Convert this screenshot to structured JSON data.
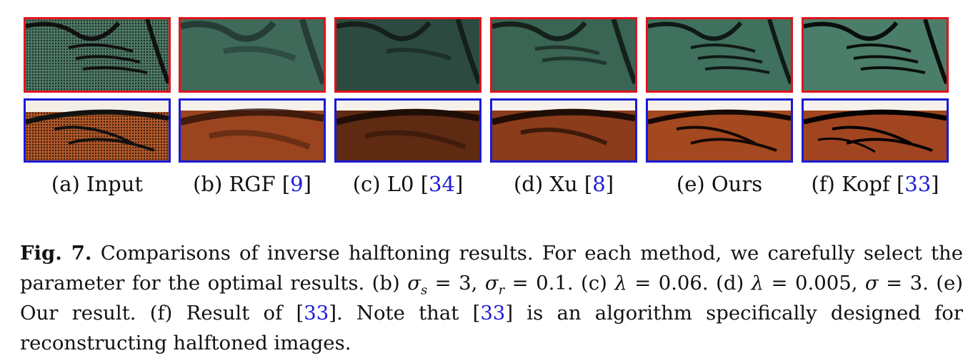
{
  "subfigures": [
    {
      "label": "(a) Input",
      "ref": ""
    },
    {
      "label": "(b) RGF [",
      "ref": "9"
    },
    {
      "label": "(c) L0 [",
      "ref": "34"
    },
    {
      "label": "(d) Xu [",
      "ref": "8"
    },
    {
      "label": "(e) Ours",
      "ref": ""
    },
    {
      "label": "(f) Kopf [",
      "ref": "33"
    }
  ],
  "caption": {
    "fig_label": "Fig. 7.",
    "part1": " Comparisons of inverse halftoning results. For each method, we carefully select the parameter for the optimal results. (b) ",
    "sigma_s_eq": "σ",
    "sub_s": "s",
    "part2": " = 3, ",
    "sigma_r_eq": "σ",
    "sub_r": "r",
    "part3": " = 0.1. (c) ",
    "lambda1": "λ",
    "part4": " = 0.06. (d) ",
    "lambda2": "λ",
    "part5": " = 0.005, ",
    "sigma": "σ",
    "part6": " = 3. (e) Our result. (f) Result of [",
    "ref1": "33",
    "part7": "]. Note that [",
    "ref2": "33",
    "part8": "] is an algorithm specifically designed for reconstructing halftoned images."
  },
  "colors": {
    "red_border": "#e0141b",
    "blue_border": "#1a1ad6",
    "ref_blue": "#1d1dd8"
  }
}
